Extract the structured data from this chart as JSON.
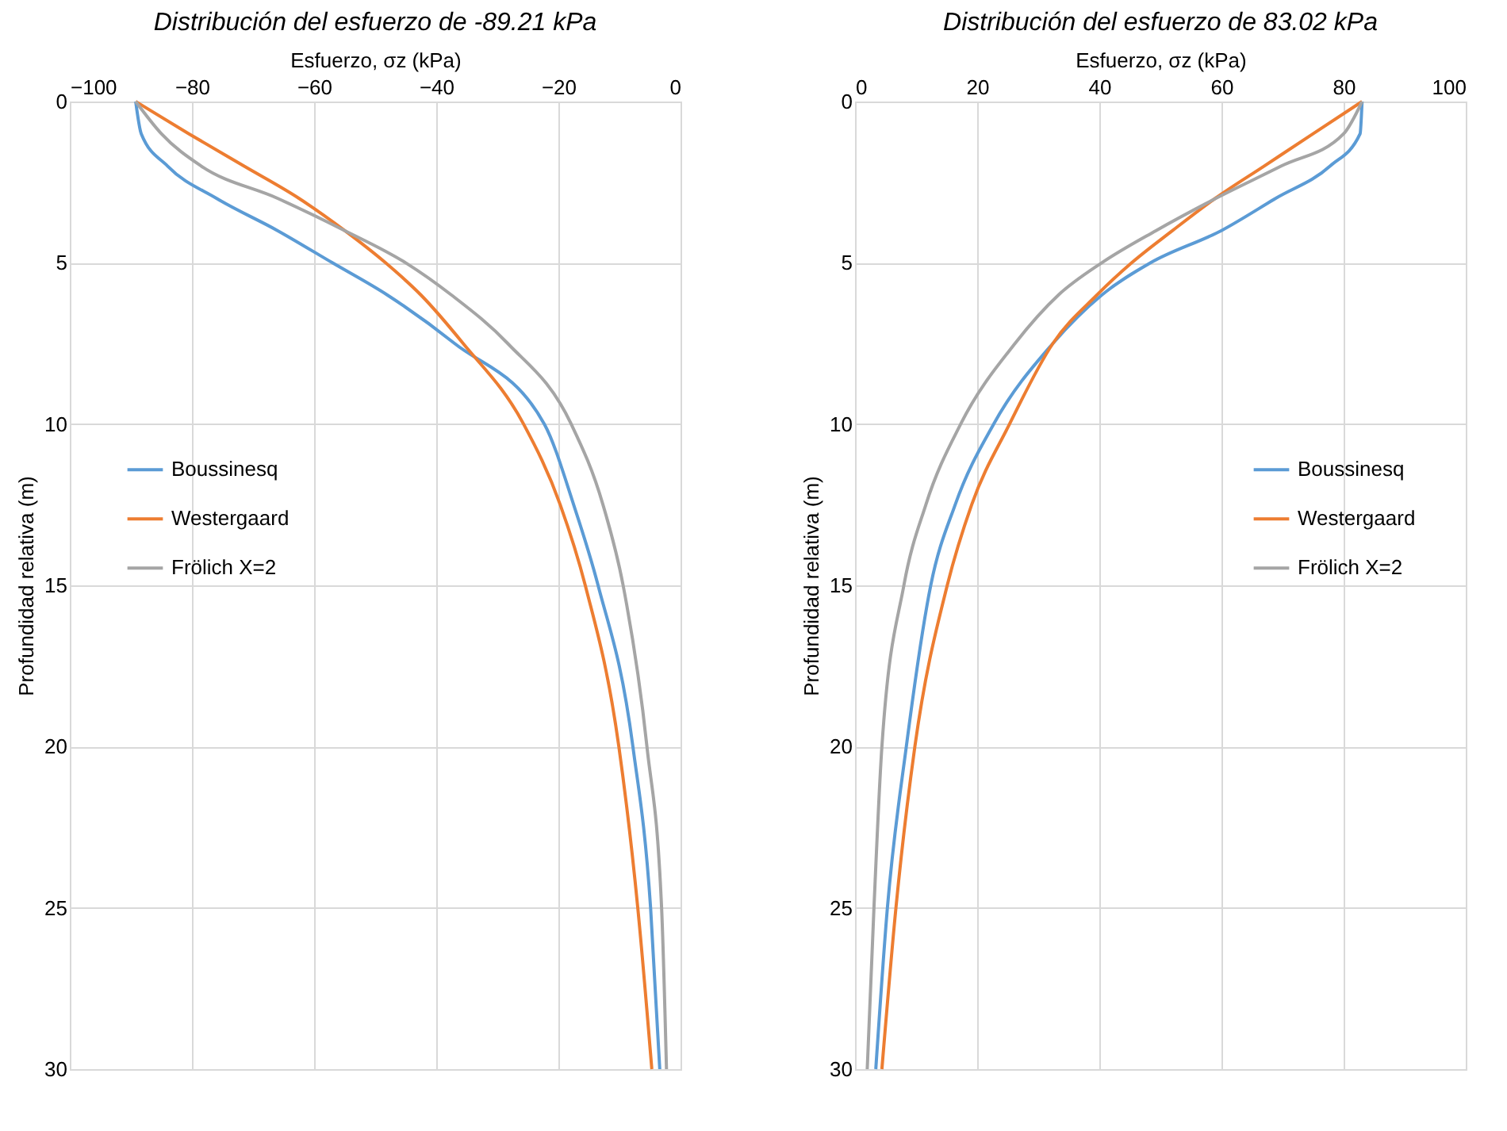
{
  "chart_data": [
    {
      "type": "line",
      "title": "Distribución del esfuerzo de -89.21 kPa",
      "xlabel": "Esfuerzo, σz (kPa)",
      "ylabel": "Profundidad relativa (m)",
      "xlim": [
        -100,
        0
      ],
      "xticks": [
        -100,
        -80,
        -60,
        -40,
        -20,
        0
      ],
      "ylim": [
        30,
        0
      ],
      "yticks": [
        0,
        5,
        10,
        15,
        20,
        25,
        30
      ],
      "grid": true,
      "legend": "left",
      "series": [
        {
          "name": "Boussinesq",
          "color": "#5b9bd5",
          "x": [
            -89.21,
            -88.3,
            -84,
            -76,
            -66,
            -57,
            -48,
            -37,
            -22.3,
            -17.5,
            -13.5,
            -7.8,
            -4.9,
            -3.4
          ],
          "values": [
            0,
            1,
            2,
            3,
            4,
            5,
            6,
            7.5,
            10,
            12.5,
            15,
            20,
            25,
            30
          ]
        },
        {
          "name": "Westergaard",
          "color": "#ed7d31",
          "x": [
            -89.21,
            -80.5,
            -71.5,
            -62.5,
            -55,
            -48.3,
            -42.5,
            -35.6,
            -25.7,
            -19.7,
            -15.6,
            -10.1,
            -7.0,
            -4.7
          ],
          "values": [
            0,
            1,
            2,
            3,
            4,
            5,
            6,
            7.5,
            10,
            12.5,
            15,
            20,
            25,
            30
          ]
        },
        {
          "name": "Frölich X=2",
          "color": "#a5a5a5",
          "x": [
            -89.21,
            -85,
            -78.5,
            -66,
            -55,
            -45,
            -37.5,
            -28.3,
            -17.9,
            -12.7,
            -9.4,
            -5.5,
            -3.1,
            -2.3
          ],
          "values": [
            0,
            1,
            2,
            3,
            4,
            5,
            6,
            7.5,
            10,
            12.5,
            15,
            20,
            25,
            30
          ]
        }
      ]
    },
    {
      "type": "line",
      "title": "Distribución del esfuerzo de 83.02 kPa",
      "xlabel": "Esfuerzo, σz (kPa)",
      "ylabel": "Profundidad relativa (m)",
      "xlim": [
        0,
        100
      ],
      "xticks": [
        0,
        20,
        40,
        60,
        80,
        100
      ],
      "ylim": [
        30,
        0
      ],
      "yticks": [
        0,
        5,
        10,
        15,
        20,
        25,
        30
      ],
      "grid": true,
      "legend": "right",
      "series": [
        {
          "name": "Boussinesq",
          "color": "#5b9bd5",
          "x": [
            83.02,
            82.7,
            77.8,
            68.9,
            60,
            48.4,
            40.4,
            32.4,
            22.7,
            16.4,
            12.4,
            8.4,
            5.3,
            3.4
          ],
          "values": [
            0,
            1,
            2,
            3,
            4,
            5,
            6,
            7.5,
            10,
            12.5,
            15,
            20,
            25,
            30
          ]
        },
        {
          "name": "Westergaard",
          "color": "#ed7d31",
          "x": [
            83.02,
            75,
            67,
            59,
            52,
            45.3,
            39.6,
            32.4,
            25.3,
            19.1,
            15.1,
            9.8,
            6.7,
            4.4
          ],
          "values": [
            0,
            1,
            2,
            3,
            4,
            5,
            6,
            7.5,
            10,
            12.5,
            15,
            20,
            25,
            30
          ]
        },
        {
          "name": "Frölich X=2",
          "color": "#a5a5a5",
          "x": [
            83.02,
            80,
            69.8,
            59.1,
            49.3,
            40.4,
            33.3,
            26.2,
            17.3,
            11.6,
            8,
            4.4,
            3.1,
            2.0
          ],
          "values": [
            0,
            1,
            2,
            3,
            4,
            5,
            6,
            7.5,
            10,
            12.5,
            15,
            20,
            25,
            30
          ]
        }
      ]
    }
  ]
}
